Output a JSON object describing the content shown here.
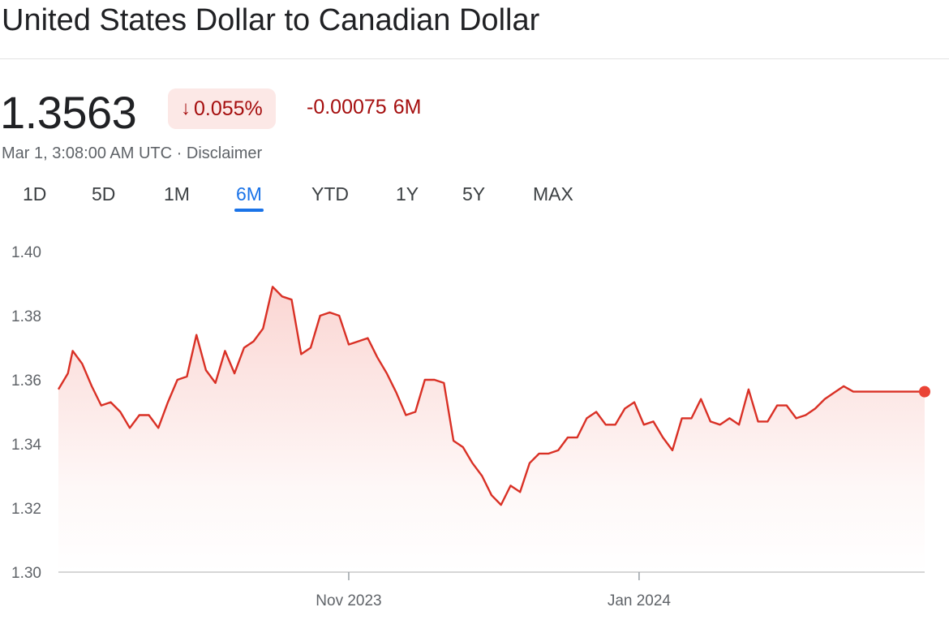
{
  "header": {
    "title": "United States Dollar to Canadian Dollar",
    "price": "1.3563",
    "change_percent": "0.055%",
    "change_percent_icon": "arrow-down-icon",
    "change_abs": "-0.00075",
    "change_period": "6M",
    "timestamp": "Mar 1, 3:08:00 AM UTC",
    "separator": "·",
    "disclaimer": "Disclaimer"
  },
  "colors": {
    "line": "#d93025",
    "negative_text": "#a50e0e",
    "negative_bg": "#fce8e6",
    "active_tab": "#1a73e8"
  },
  "tabs": [
    "1D",
    "5D",
    "1M",
    "6M",
    "YTD",
    "1Y",
    "5Y",
    "MAX"
  ],
  "active_tab": "6M",
  "chart_data": {
    "type": "area",
    "title": "",
    "xlabel": "",
    "ylabel": "",
    "ylim": [
      1.3,
      1.4
    ],
    "yticks": [
      "1.40",
      "1.38",
      "1.36",
      "1.34",
      "1.32",
      "1.30"
    ],
    "xticks": [
      {
        "label": "Nov 2023",
        "date": "2023-11-01"
      },
      {
        "label": "Jan 2024",
        "date": "2024-01-01"
      }
    ],
    "grid": false,
    "series": [
      {
        "x": [
          "2023-09-01",
          "2023-09-03",
          "2023-09-04",
          "2023-09-06",
          "2023-09-08",
          "2023-09-10",
          "2023-09-12",
          "2023-09-14",
          "2023-09-16",
          "2023-09-18",
          "2023-09-20",
          "2023-09-22",
          "2023-09-24",
          "2023-09-26",
          "2023-09-28",
          "2023-09-30",
          "2023-10-02",
          "2023-10-04",
          "2023-10-06",
          "2023-10-08",
          "2023-10-10",
          "2023-10-12",
          "2023-10-14",
          "2023-10-16",
          "2023-10-18",
          "2023-10-20",
          "2023-10-22",
          "2023-10-24",
          "2023-10-26",
          "2023-10-28",
          "2023-10-30",
          "2023-11-01",
          "2023-11-03",
          "2023-11-05",
          "2023-11-07",
          "2023-11-09",
          "2023-11-11",
          "2023-11-13",
          "2023-11-15",
          "2023-11-17",
          "2023-11-19",
          "2023-11-21",
          "2023-11-23",
          "2023-11-25",
          "2023-11-27",
          "2023-11-29",
          "2023-12-01",
          "2023-12-03",
          "2023-12-05",
          "2023-12-07",
          "2023-12-09",
          "2023-12-11",
          "2023-12-13",
          "2023-12-15",
          "2023-12-17",
          "2023-12-19",
          "2023-12-21",
          "2023-12-23",
          "2023-12-25",
          "2023-12-27",
          "2023-12-29",
          "2023-12-31",
          "2024-01-02",
          "2024-01-04",
          "2024-01-06",
          "2024-01-08",
          "2024-01-10",
          "2024-01-12",
          "2024-01-14",
          "2024-01-16",
          "2024-01-18",
          "2024-01-20",
          "2024-01-22",
          "2024-01-24",
          "2024-01-26",
          "2024-01-28",
          "2024-01-30",
          "2024-02-01",
          "2024-02-03",
          "2024-02-05",
          "2024-02-07",
          "2024-02-09",
          "2024-02-11",
          "2024-02-13",
          "2024-02-15",
          "2024-02-17",
          "2024-02-19",
          "2024-02-21",
          "2024-02-23",
          "2024-02-25",
          "2024-02-27",
          "2024-02-29",
          "2024-03-01"
        ],
        "values": [
          1.357,
          1.362,
          1.369,
          1.365,
          1.358,
          1.352,
          1.353,
          1.35,
          1.345,
          1.349,
          1.349,
          1.345,
          1.353,
          1.36,
          1.361,
          1.374,
          1.363,
          1.359,
          1.369,
          1.362,
          1.37,
          1.372,
          1.376,
          1.389,
          1.386,
          1.385,
          1.368,
          1.37,
          1.38,
          1.381,
          1.38,
          1.371,
          1.372,
          1.373,
          1.367,
          1.362,
          1.356,
          1.349,
          1.35,
          1.36,
          1.36,
          1.359,
          1.341,
          1.339,
          1.334,
          1.33,
          1.324,
          1.321,
          1.327,
          1.325,
          1.334,
          1.337,
          1.337,
          1.338,
          1.342,
          1.342,
          1.348,
          1.35,
          1.346,
          1.346,
          1.351,
          1.353,
          1.346,
          1.347,
          1.342,
          1.338,
          1.348,
          1.348,
          1.354,
          1.347,
          1.346,
          1.348,
          1.346,
          1.357,
          1.347,
          1.347,
          1.352,
          1.352,
          1.348,
          1.349,
          1.351,
          1.354,
          1.356,
          1.358,
          1.3563,
          1.3563,
          1.3563,
          1.3563,
          1.3563,
          1.3563,
          1.3563,
          1.3563,
          1.3563
        ]
      }
    ]
  }
}
